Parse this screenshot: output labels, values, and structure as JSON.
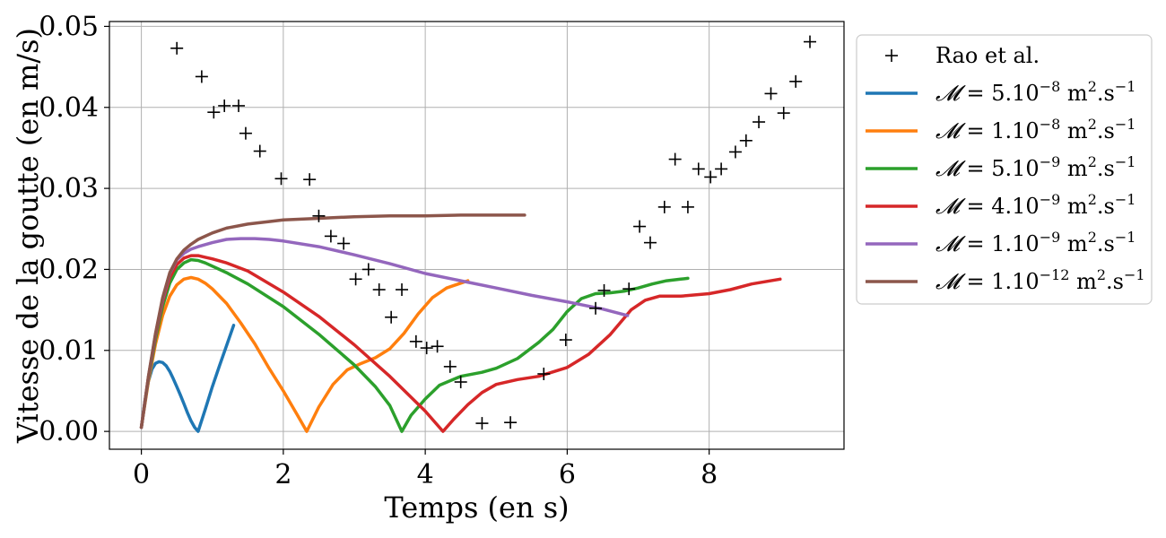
{
  "chart_data": {
    "type": "line",
    "title": "",
    "xlabel": "Temps (en s)",
    "ylabel": "Vitesse de la goutte (en m/s)",
    "xlim": [
      -0.45,
      9.9
    ],
    "ylim": [
      -0.0022,
      0.0506
    ],
    "xticks": [
      0,
      2,
      4,
      6,
      8
    ],
    "yticks": [
      0.0,
      0.01,
      0.02,
      0.03,
      0.04,
      0.05
    ],
    "xtick_labels": [
      "0",
      "2",
      "4",
      "6",
      "8"
    ],
    "ytick_labels": [
      "0.00",
      "0.01",
      "0.02",
      "0.03",
      "0.04",
      "0.05"
    ],
    "grid": true,
    "legend_position": "outside-right",
    "scatter": {
      "name": "Rao et al.",
      "marker": "+",
      "color": "#000000",
      "points": [
        [
          0.5,
          0.0473
        ],
        [
          0.85,
          0.0438
        ],
        [
          1.02,
          0.0394
        ],
        [
          1.17,
          0.0402
        ],
        [
          1.37,
          0.0402
        ],
        [
          1.47,
          0.0368
        ],
        [
          1.67,
          0.0346
        ],
        [
          1.97,
          0.0312
        ],
        [
          2.37,
          0.0311
        ],
        [
          2.5,
          0.0266
        ],
        [
          2.67,
          0.0241
        ],
        [
          2.85,
          0.0232
        ],
        [
          3.02,
          0.0188
        ],
        [
          3.2,
          0.02
        ],
        [
          3.35,
          0.0175
        ],
        [
          3.52,
          0.0141
        ],
        [
          3.67,
          0.0175
        ],
        [
          3.87,
          0.0111
        ],
        [
          4.02,
          0.0103
        ],
        [
          4.17,
          0.0105
        ],
        [
          4.35,
          0.008
        ],
        [
          4.5,
          0.0061
        ],
        [
          4.8,
          0.001
        ],
        [
          5.2,
          0.0011
        ],
        [
          5.67,
          0.0071
        ],
        [
          5.98,
          0.0113
        ],
        [
          6.4,
          0.0152
        ],
        [
          6.52,
          0.0174
        ],
        [
          6.87,
          0.0176
        ],
        [
          7.02,
          0.0253
        ],
        [
          7.17,
          0.0233
        ],
        [
          7.37,
          0.0277
        ],
        [
          7.52,
          0.0336
        ],
        [
          7.7,
          0.0277
        ],
        [
          7.85,
          0.0324
        ],
        [
          8.02,
          0.0314
        ],
        [
          8.17,
          0.0324
        ],
        [
          8.37,
          0.0345
        ],
        [
          8.52,
          0.0359
        ],
        [
          8.7,
          0.0382
        ],
        [
          8.87,
          0.0417
        ],
        [
          9.05,
          0.0393
        ],
        [
          9.22,
          0.0432
        ],
        [
          9.42,
          0.0481
        ]
      ]
    },
    "series": [
      {
        "label": "= 5.10",
        "exponent": "−8",
        "color": "#1f77b4",
        "x": [
          0,
          0.05,
          0.1,
          0.15,
          0.2,
          0.25,
          0.3,
          0.35,
          0.4,
          0.45,
          0.5,
          0.55,
          0.6,
          0.65,
          0.7,
          0.75,
          0.8,
          0.9,
          1.0,
          1.1,
          1.2,
          1.3
        ],
        "y": [
          0.0005,
          0.0038,
          0.0062,
          0.0077,
          0.0084,
          0.0086,
          0.0085,
          0.0081,
          0.0074,
          0.0065,
          0.0055,
          0.0045,
          0.0034,
          0.0023,
          0.0013,
          0.0005,
          0.0,
          0.0027,
          0.0055,
          0.0081,
          0.0106,
          0.0131
        ]
      },
      {
        "label": "= 1.10",
        "exponent": "−8",
        "color": "#ff7f0e",
        "x": [
          0,
          0.1,
          0.2,
          0.3,
          0.4,
          0.5,
          0.6,
          0.7,
          0.8,
          0.9,
          1.0,
          1.2,
          1.4,
          1.6,
          1.8,
          2.0,
          2.2,
          2.33,
          2.5,
          2.7,
          2.9,
          3.1,
          3.3,
          3.5,
          3.7,
          3.9,
          4.1,
          4.3,
          4.5,
          4.6
        ],
        "y": [
          0.0005,
          0.0062,
          0.0108,
          0.0143,
          0.0167,
          0.0181,
          0.0188,
          0.019,
          0.0188,
          0.0183,
          0.0176,
          0.0158,
          0.0134,
          0.0108,
          0.0078,
          0.005,
          0.002,
          0.0,
          0.003,
          0.0058,
          0.0076,
          0.0084,
          0.0091,
          0.0102,
          0.0121,
          0.0145,
          0.0165,
          0.0177,
          0.0183,
          0.0186
        ]
      },
      {
        "label": "= 5.10",
        "exponent": "−9",
        "color": "#2ca02c",
        "x": [
          0,
          0.1,
          0.2,
          0.3,
          0.4,
          0.5,
          0.6,
          0.7,
          0.8,
          0.9,
          1.0,
          1.2,
          1.5,
          2.0,
          2.5,
          3.0,
          3.3,
          3.5,
          3.67,
          3.8,
          4.0,
          4.2,
          4.5,
          4.8,
          5.0,
          5.3,
          5.6,
          5.8,
          6.0,
          6.2,
          6.4,
          6.6,
          6.8,
          7.0,
          7.2,
          7.4,
          7.6,
          7.7
        ],
        "y": [
          0.0005,
          0.0065,
          0.0114,
          0.0154,
          0.0183,
          0.02,
          0.0208,
          0.0212,
          0.0211,
          0.0208,
          0.0204,
          0.0196,
          0.0182,
          0.0154,
          0.012,
          0.0082,
          0.0055,
          0.0032,
          0.0,
          0.002,
          0.004,
          0.0057,
          0.0068,
          0.0073,
          0.0078,
          0.009,
          0.011,
          0.0126,
          0.0148,
          0.0164,
          0.017,
          0.0171,
          0.0173,
          0.0177,
          0.0182,
          0.0186,
          0.0188,
          0.0189
        ]
      },
      {
        "label": "= 4.10",
        "exponent": "−9",
        "color": "#d62728",
        "x": [
          0,
          0.1,
          0.2,
          0.3,
          0.4,
          0.5,
          0.6,
          0.7,
          0.8,
          0.9,
          1.0,
          1.2,
          1.5,
          2.0,
          2.5,
          3.0,
          3.5,
          4.0,
          4.25,
          4.4,
          4.6,
          4.8,
          5.0,
          5.3,
          5.6,
          6.0,
          6.3,
          6.6,
          6.9,
          7.1,
          7.3,
          7.6,
          8.0,
          8.3,
          8.6,
          9.0
        ],
        "y": [
          0.0005,
          0.0067,
          0.0118,
          0.016,
          0.019,
          0.0206,
          0.0214,
          0.0217,
          0.0217,
          0.0215,
          0.0213,
          0.0208,
          0.0198,
          0.0172,
          0.0142,
          0.0107,
          0.0068,
          0.0025,
          0.0,
          0.0015,
          0.0033,
          0.0048,
          0.0058,
          0.0064,
          0.0068,
          0.0079,
          0.0095,
          0.0119,
          0.015,
          0.0162,
          0.0167,
          0.0167,
          0.017,
          0.0175,
          0.0182,
          0.0188
        ]
      },
      {
        "label": "= 1.10",
        "exponent": "−9",
        "color": "#9467bd",
        "x": [
          0,
          0.1,
          0.2,
          0.3,
          0.4,
          0.5,
          0.6,
          0.7,
          0.8,
          1.0,
          1.2,
          1.4,
          1.6,
          1.8,
          2.0,
          2.5,
          3.0,
          3.5,
          4.0,
          4.5,
          5.0,
          5.5,
          6.0,
          6.5,
          6.85
        ],
        "y": [
          0.0005,
          0.0067,
          0.012,
          0.0163,
          0.0195,
          0.0212,
          0.022,
          0.0225,
          0.0228,
          0.0233,
          0.0237,
          0.0238,
          0.0238,
          0.0237,
          0.0235,
          0.0228,
          0.0218,
          0.0207,
          0.0195,
          0.0186,
          0.0177,
          0.0168,
          0.016,
          0.0151,
          0.0143
        ]
      },
      {
        "label": "= 1.10",
        "exponent": "−12",
        "color": "#8c564b",
        "x": [
          0,
          0.1,
          0.2,
          0.3,
          0.4,
          0.5,
          0.6,
          0.7,
          0.8,
          1.0,
          1.2,
          1.5,
          1.8,
          2.0,
          2.5,
          3.0,
          3.5,
          4.0,
          4.5,
          5.0,
          5.4
        ],
        "y": [
          0.0005,
          0.0068,
          0.0121,
          0.0165,
          0.0196,
          0.0213,
          0.0224,
          0.0231,
          0.0237,
          0.0245,
          0.0251,
          0.0256,
          0.0259,
          0.0261,
          0.0263,
          0.0265,
          0.0266,
          0.0266,
          0.0267,
          0.0267,
          0.0267
        ]
      }
    ]
  },
  "legend": {
    "symbol": "𝓜",
    "unit": "m",
    "unit_exp": "2",
    "unit_suffix": ".s",
    "time_exp": "−1"
  }
}
